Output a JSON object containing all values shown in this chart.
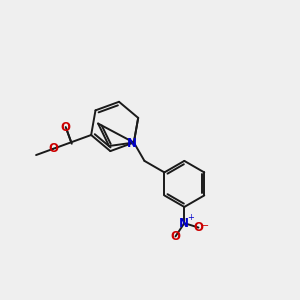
{
  "bg_color": "#efefef",
  "bond_color": "#1a1a1a",
  "N_color": "#0000cc",
  "O_color": "#cc0000",
  "lw": 1.4,
  "figsize": [
    3.0,
    3.0
  ],
  "dpi": 100,
  "xlim": [
    0,
    10
  ],
  "ylim": [
    0,
    10
  ]
}
